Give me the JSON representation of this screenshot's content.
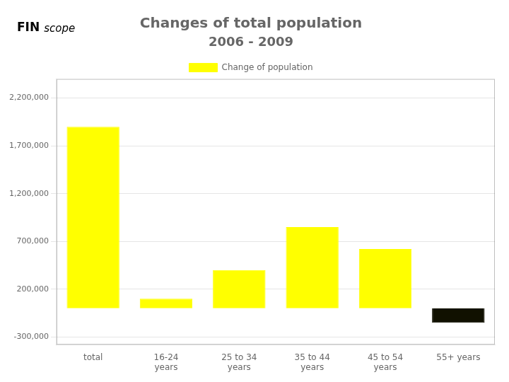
{
  "chart_data": {
    "type": "bar",
    "title": "Changes of total population",
    "subtitle": "2006 - 2009",
    "annotations": [
      "FIN",
      "scope"
    ],
    "categories": [
      "total",
      "16-24\nyears",
      "25 to 34\nyears",
      "35 to 44\nyears",
      "45 to 54\nyears",
      "55+ years"
    ],
    "series": [
      {
        "name": "Change of population",
        "values": [
          1900000,
          100000,
          400000,
          850000,
          620000,
          -150000
        ],
        "colors": [
          "#ffff00",
          "#ffff00",
          "#ffff00",
          "#ffff00",
          "#ffff00",
          "#111100"
        ]
      }
    ],
    "ylim": [
      -380000,
      2400000
    ],
    "yticks": [
      {
        "value": -300000,
        "label": "-300,000"
      },
      {
        "value": 200000,
        "label": "200,000"
      },
      {
        "value": 700000,
        "label": "700,000"
      },
      {
        "value": 1200000,
        "label": "1,200,000"
      },
      {
        "value": 1700000,
        "label": "1,700,000"
      },
      {
        "value": 2200000,
        "label": "2,200,000"
      }
    ],
    "grid": true,
    "legend": "top"
  }
}
